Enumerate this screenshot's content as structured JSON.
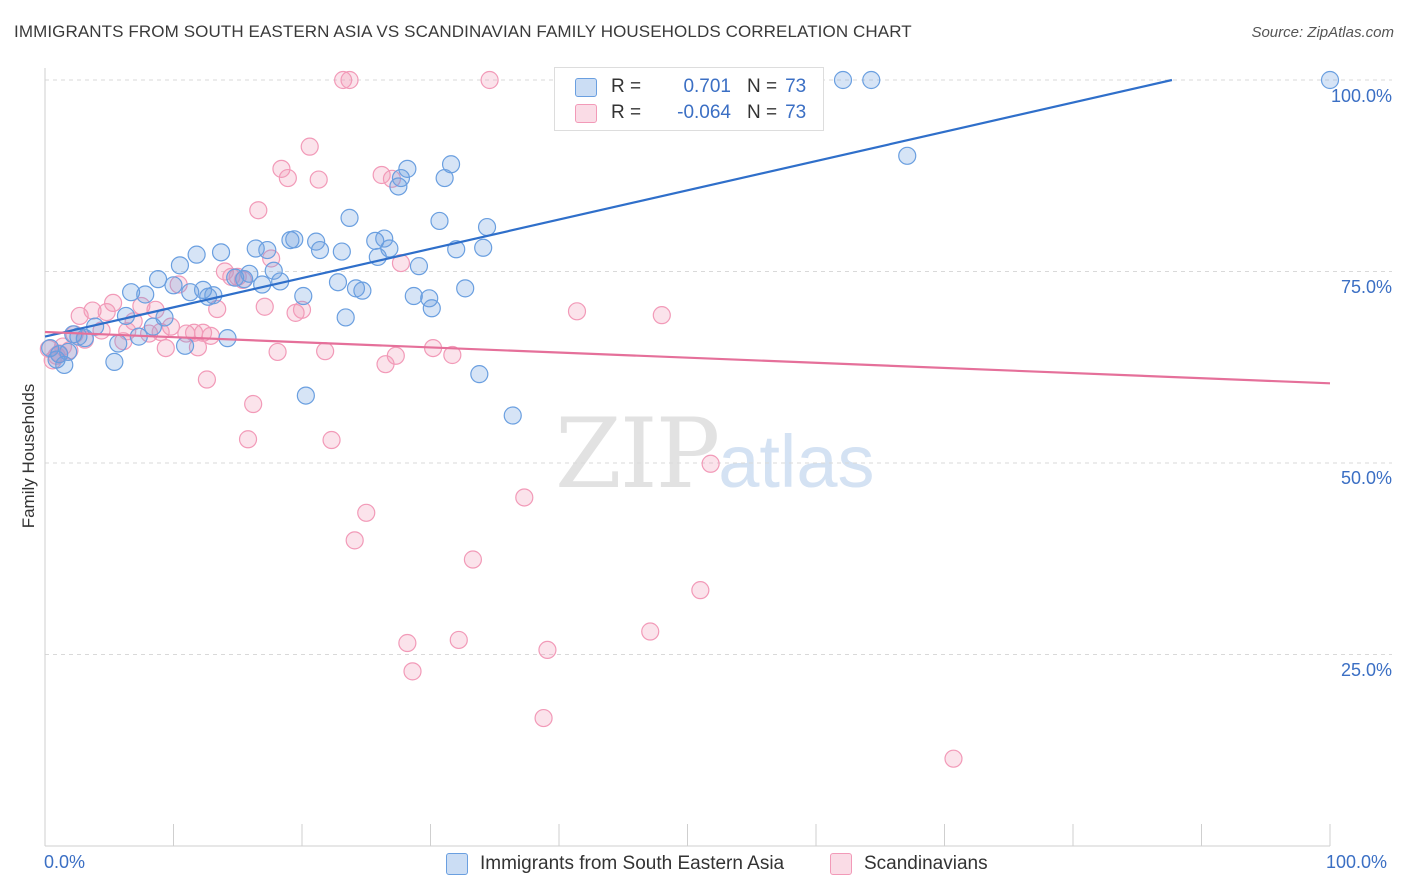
{
  "title": "IMMIGRANTS FROM SOUTH EASTERN ASIA VS SCANDINAVIAN FAMILY HOUSEHOLDS CORRELATION CHART",
  "source": "Source: ZipAtlas.com",
  "watermark": {
    "zip": "ZIP",
    "atlas": "atlas"
  },
  "legend": {
    "blue": {
      "r_label": "R =",
      "r_value": "0.701",
      "n_label": "N =",
      "n_value": "73"
    },
    "pink": {
      "r_label": "R =",
      "r_value": "-0.064",
      "n_label": "N =",
      "n_value": "73"
    }
  },
  "colors": {
    "blue": "#6a9fe0",
    "blue_line": "#2f6fca",
    "pink": "#f29ab8",
    "pink_line": "#e5709a",
    "tick_text": "#3b6fc4",
    "grid": "#d9d9d9"
  },
  "chart_data": {
    "type": "scatter",
    "title": "IMMIGRANTS FROM SOUTH EASTERN ASIA VS SCANDINAVIAN FAMILY HOUSEHOLDS CORRELATION CHART",
    "xlabel": "",
    "ylabel": "Family Households",
    "xlim": [
      0,
      100
    ],
    "ylim": [
      0,
      102
    ],
    "x_tick_labels": [
      "0.0%",
      "100.0%"
    ],
    "y_tick_labels": [
      "25.0%",
      "50.0%",
      "75.0%",
      "100.0%"
    ],
    "y_ticks": [
      25,
      50,
      75,
      100
    ],
    "grid": true,
    "legend_position": "top-center",
    "series": [
      {
        "name": "Immigrants from South Eastern Asia",
        "trend": {
          "x": [
            0,
            87.7
          ],
          "y": [
            66.5,
            100
          ]
        },
        "points": [
          [
            0.4,
            65.0
          ],
          [
            0.9,
            63.5
          ],
          [
            1.1,
            64.2
          ],
          [
            1.5,
            62.8
          ],
          [
            1.8,
            64.5
          ],
          [
            2.2,
            66.8
          ],
          [
            2.6,
            66.5
          ],
          [
            3.1,
            66.3
          ],
          [
            3.9,
            67.8
          ],
          [
            5.4,
            63.2
          ],
          [
            5.7,
            65.6
          ],
          [
            6.3,
            69.2
          ],
          [
            6.7,
            72.3
          ],
          [
            7.3,
            66.5
          ],
          [
            7.8,
            72.0
          ],
          [
            8.4,
            67.8
          ],
          [
            8.8,
            74.0
          ],
          [
            9.3,
            69.0
          ],
          [
            10.0,
            73.2
          ],
          [
            10.5,
            75.8
          ],
          [
            10.9,
            65.3
          ],
          [
            11.3,
            72.3
          ],
          [
            11.8,
            77.2
          ],
          [
            12.3,
            72.6
          ],
          [
            12.7,
            71.7
          ],
          [
            13.1,
            71.9
          ],
          [
            13.7,
            77.5
          ],
          [
            14.2,
            66.3
          ],
          [
            14.8,
            74.2
          ],
          [
            15.5,
            74.0
          ],
          [
            15.9,
            74.7
          ],
          [
            16.4,
            78.0
          ],
          [
            16.9,
            73.3
          ],
          [
            17.3,
            77.8
          ],
          [
            17.8,
            75.1
          ],
          [
            18.3,
            73.7
          ],
          [
            19.1,
            79.1
          ],
          [
            19.4,
            79.2
          ],
          [
            20.1,
            71.8
          ],
          [
            20.3,
            58.8
          ],
          [
            21.1,
            78.9
          ],
          [
            21.4,
            77.8
          ],
          [
            22.8,
            73.6
          ],
          [
            23.1,
            77.6
          ],
          [
            23.4,
            69.0
          ],
          [
            23.7,
            82.0
          ],
          [
            24.2,
            72.8
          ],
          [
            24.7,
            72.5
          ],
          [
            25.7,
            79.0
          ],
          [
            25.9,
            76.9
          ],
          [
            26.4,
            79.3
          ],
          [
            26.8,
            78.0
          ],
          [
            27.5,
            86.1
          ],
          [
            27.7,
            87.2
          ],
          [
            28.2,
            88.4
          ],
          [
            28.7,
            71.8
          ],
          [
            29.1,
            75.7
          ],
          [
            29.9,
            71.5
          ],
          [
            30.1,
            70.2
          ],
          [
            30.7,
            81.6
          ],
          [
            31.1,
            87.2
          ],
          [
            31.6,
            89.0
          ],
          [
            32.0,
            77.9
          ],
          [
            32.7,
            72.8
          ],
          [
            33.8,
            61.6
          ],
          [
            34.1,
            78.1
          ],
          [
            34.4,
            80.8
          ],
          [
            36.4,
            56.2
          ],
          [
            43.2,
            100.0
          ],
          [
            62.1,
            100.0
          ],
          [
            64.3,
            100.0
          ],
          [
            67.1,
            90.1
          ],
          [
            100.0,
            100.0
          ]
        ]
      },
      {
        "name": "Scandinavians",
        "trend": {
          "x": [
            0,
            100
          ],
          "y": [
            67.1,
            60.4
          ]
        },
        "points": [
          [
            0.3,
            64.9
          ],
          [
            0.6,
            63.4
          ],
          [
            0.9,
            64.0
          ],
          [
            1.1,
            64.3
          ],
          [
            1.4,
            65.2
          ],
          [
            1.9,
            64.7
          ],
          [
            2.3,
            66.8
          ],
          [
            2.7,
            69.2
          ],
          [
            3.1,
            66.1
          ],
          [
            3.7,
            69.9
          ],
          [
            4.4,
            67.3
          ],
          [
            4.8,
            69.7
          ],
          [
            5.3,
            70.9
          ],
          [
            6.1,
            65.9
          ],
          [
            6.4,
            67.2
          ],
          [
            6.9,
            68.5
          ],
          [
            7.5,
            70.5
          ],
          [
            8.1,
            66.9
          ],
          [
            8.6,
            70.0
          ],
          [
            9.0,
            67.1
          ],
          [
            9.4,
            65.0
          ],
          [
            9.8,
            67.8
          ],
          [
            10.4,
            73.3
          ],
          [
            11.0,
            66.9
          ],
          [
            11.6,
            67.0
          ],
          [
            11.9,
            65.1
          ],
          [
            12.3,
            67.0
          ],
          [
            12.6,
            60.9
          ],
          [
            12.9,
            66.6
          ],
          [
            13.4,
            70.1
          ],
          [
            14.0,
            75.0
          ],
          [
            14.5,
            74.3
          ],
          [
            15.0,
            74.3
          ],
          [
            15.4,
            73.9
          ],
          [
            15.8,
            53.1
          ],
          [
            16.2,
            57.7
          ],
          [
            16.6,
            83.0
          ],
          [
            17.1,
            70.4
          ],
          [
            17.6,
            76.7
          ],
          [
            18.1,
            64.5
          ],
          [
            18.4,
            88.4
          ],
          [
            18.9,
            87.2
          ],
          [
            19.5,
            69.6
          ],
          [
            20.0,
            70.0
          ],
          [
            20.6,
            91.3
          ],
          [
            21.3,
            87.0
          ],
          [
            21.8,
            64.6
          ],
          [
            22.3,
            53.0
          ],
          [
            23.2,
            100.0
          ],
          [
            23.7,
            100.0
          ],
          [
            24.1,
            39.9
          ],
          [
            25.0,
            43.5
          ],
          [
            26.2,
            87.6
          ],
          [
            26.5,
            62.9
          ],
          [
            27.0,
            87.1
          ],
          [
            27.3,
            64.0
          ],
          [
            27.7,
            76.1
          ],
          [
            28.2,
            26.5
          ],
          [
            28.6,
            22.8
          ],
          [
            30.2,
            65.0
          ],
          [
            31.7,
            64.1
          ],
          [
            32.2,
            26.9
          ],
          [
            33.3,
            37.4
          ],
          [
            34.6,
            100.0
          ],
          [
            37.3,
            45.5
          ],
          [
            38.8,
            16.7
          ],
          [
            39.1,
            25.6
          ],
          [
            41.4,
            69.8
          ],
          [
            47.1,
            28.0
          ],
          [
            48.0,
            69.3
          ],
          [
            51.0,
            33.4
          ],
          [
            51.8,
            49.9
          ],
          [
            70.7,
            11.4
          ]
        ]
      }
    ]
  }
}
